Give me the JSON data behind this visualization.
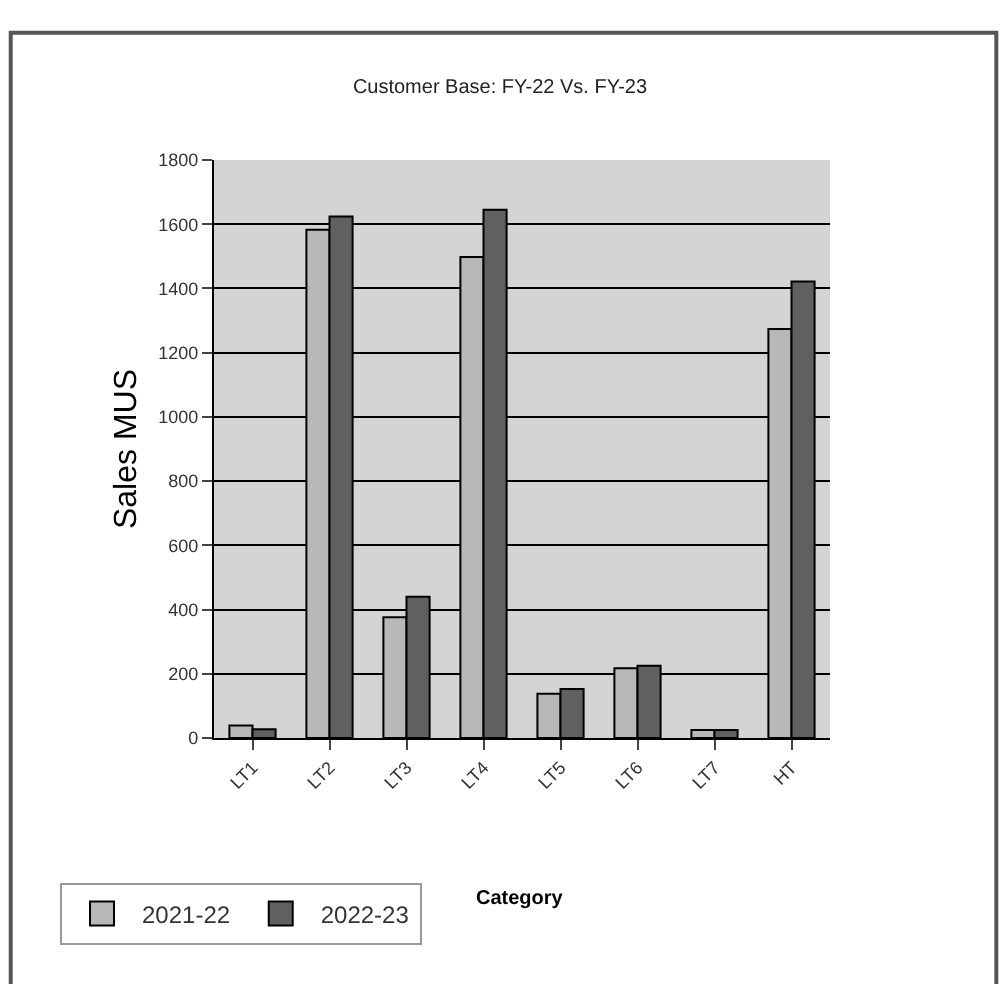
{
  "chart_data": {
    "type": "bar",
    "title": "Customer Base: FY-22 Vs. FY-23",
    "ylabel": "Sales MUS",
    "xlabel": "Category",
    "categories": [
      "LT1",
      "LT2",
      "LT3",
      "LT4",
      "LT5",
      "LT6",
      "LT7",
      "HT"
    ],
    "series": [
      {
        "name": "2021-22",
        "color": "#b8b8b8",
        "values": [
          39,
          1583,
          376,
          1498,
          138,
          217,
          25,
          1274
        ]
      },
      {
        "name": "2022-23",
        "color": "#606060",
        "values": [
          27,
          1624,
          440,
          1645,
          153,
          225,
          25,
          1422
        ]
      }
    ],
    "ylim": [
      0,
      1800
    ],
    "yticks": [
      0,
      200,
      400,
      600,
      800,
      1000,
      1200,
      1400,
      1600,
      1800
    ],
    "grid": "y",
    "legend": "bottom left"
  }
}
